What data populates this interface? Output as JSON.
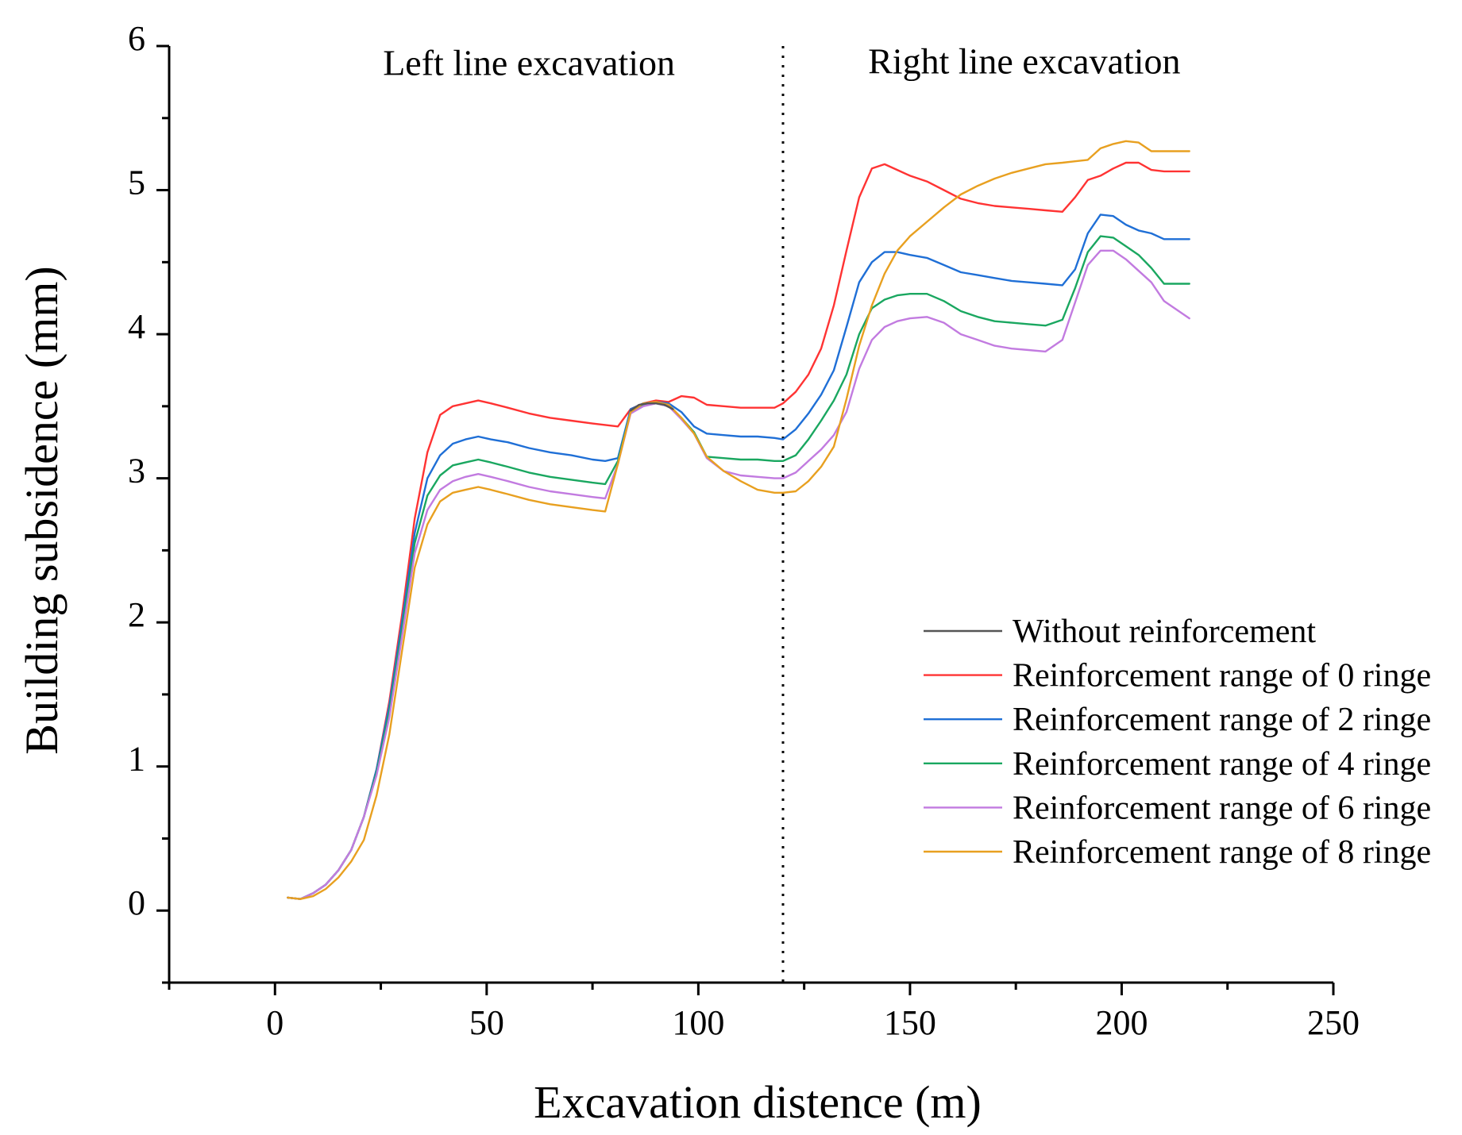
{
  "chart_data": {
    "type": "line",
    "title": "",
    "xlabel": "Excavation distence (m)",
    "ylabel": "Building subsidence (mm)",
    "xlim": [
      -25,
      250
    ],
    "ylim": [
      -0.5,
      6
    ],
    "xticks": [
      0,
      50,
      100,
      150,
      200,
      250
    ],
    "yticks": [
      0,
      1,
      2,
      3,
      4,
      5,
      6
    ],
    "grid": false,
    "legend_position": "lower-right",
    "divider": {
      "x": 120,
      "style": "dotted"
    },
    "annotations": [
      {
        "text": "Left line excavation",
        "x": 60,
        "y": 5.8
      },
      {
        "text": "Right line excavation",
        "x": 177,
        "y": 5.81
      }
    ],
    "series": [
      {
        "name": "Without reinforcement",
        "color": "#555555",
        "x": [
          84,
          86,
          88,
          90,
          92,
          94
        ],
        "y": [
          3.47,
          3.51,
          3.52,
          3.52,
          3.51,
          3.48
        ]
      },
      {
        "name": "Reinforcement range of 0 ringe",
        "color": "#ff3333",
        "x": [
          3,
          6,
          9,
          12,
          15,
          18,
          21,
          24,
          27,
          30,
          33,
          36,
          39,
          42,
          45,
          48,
          51,
          55,
          60,
          65,
          70,
          75,
          78,
          81,
          84,
          87,
          90,
          93,
          96,
          99,
          102,
          106,
          110,
          114,
          118,
          120,
          123,
          126,
          129,
          132,
          135,
          138,
          141,
          144,
          147,
          150,
          154,
          158,
          162,
          166,
          170,
          174,
          178,
          182,
          186,
          189,
          192,
          195,
          198,
          201,
          204,
          207,
          210,
          213,
          216
        ],
        "y": [
          0.09,
          0.08,
          0.12,
          0.18,
          0.28,
          0.42,
          0.65,
          0.98,
          1.45,
          2.05,
          2.72,
          3.18,
          3.44,
          3.5,
          3.52,
          3.54,
          3.52,
          3.49,
          3.45,
          3.42,
          3.4,
          3.38,
          3.37,
          3.36,
          3.48,
          3.52,
          3.54,
          3.53,
          3.57,
          3.56,
          3.51,
          3.5,
          3.49,
          3.49,
          3.49,
          3.52,
          3.6,
          3.72,
          3.9,
          4.2,
          4.58,
          4.95,
          5.15,
          5.18,
          5.14,
          5.1,
          5.06,
          5.0,
          4.94,
          4.91,
          4.89,
          4.88,
          4.87,
          4.86,
          4.85,
          4.95,
          5.07,
          5.1,
          5.15,
          5.19,
          5.19,
          5.14,
          5.13,
          5.13,
          5.13
        ]
      },
      {
        "name": "Reinforcement range of 2 ringe",
        "color": "#1f6fd6",
        "x": [
          3,
          6,
          9,
          12,
          15,
          18,
          21,
          24,
          27,
          30,
          33,
          36,
          39,
          42,
          45,
          48,
          51,
          55,
          60,
          65,
          70,
          75,
          78,
          81,
          84,
          87,
          90,
          93,
          96,
          99,
          102,
          106,
          110,
          114,
          118,
          120,
          123,
          126,
          129,
          132,
          135,
          138,
          141,
          144,
          147,
          150,
          154,
          158,
          162,
          166,
          170,
          174,
          178,
          182,
          186,
          189,
          192,
          195,
          198,
          201,
          204,
          207,
          210,
          213,
          216
        ],
        "y": [
          0.09,
          0.08,
          0.12,
          0.18,
          0.28,
          0.42,
          0.65,
          0.98,
          1.42,
          2.0,
          2.62,
          3.0,
          3.16,
          3.24,
          3.27,
          3.29,
          3.27,
          3.25,
          3.21,
          3.18,
          3.16,
          3.13,
          3.12,
          3.14,
          3.48,
          3.52,
          3.53,
          3.52,
          3.46,
          3.36,
          3.31,
          3.3,
          3.29,
          3.29,
          3.28,
          3.27,
          3.34,
          3.45,
          3.58,
          3.75,
          4.05,
          4.36,
          4.5,
          4.57,
          4.57,
          4.55,
          4.53,
          4.48,
          4.43,
          4.41,
          4.39,
          4.37,
          4.36,
          4.35,
          4.34,
          4.45,
          4.7,
          4.83,
          4.82,
          4.76,
          4.72,
          4.7,
          4.66,
          4.66,
          4.66
        ]
      },
      {
        "name": "Reinforcement range of 4 ringe",
        "color": "#1aa760",
        "x": [
          3,
          6,
          9,
          12,
          15,
          18,
          21,
          24,
          27,
          30,
          33,
          36,
          39,
          42,
          45,
          48,
          51,
          55,
          60,
          65,
          70,
          75,
          78,
          81,
          84,
          87,
          90,
          93,
          96,
          99,
          102,
          106,
          110,
          114,
          118,
          120,
          123,
          126,
          129,
          132,
          135,
          138,
          141,
          144,
          147,
          150,
          154,
          158,
          162,
          166,
          170,
          174,
          178,
          182,
          186,
          189,
          192,
          195,
          198,
          201,
          204,
          207,
          210,
          213,
          216
        ],
        "y": [
          0.09,
          0.08,
          0.12,
          0.18,
          0.28,
          0.42,
          0.65,
          0.96,
          1.38,
          1.95,
          2.55,
          2.88,
          3.02,
          3.09,
          3.11,
          3.13,
          3.11,
          3.08,
          3.04,
          3.01,
          2.99,
          2.97,
          2.96,
          3.12,
          3.46,
          3.51,
          3.52,
          3.5,
          3.42,
          3.32,
          3.15,
          3.14,
          3.13,
          3.13,
          3.12,
          3.12,
          3.16,
          3.27,
          3.4,
          3.54,
          3.72,
          4.0,
          4.18,
          4.24,
          4.27,
          4.28,
          4.28,
          4.23,
          4.16,
          4.12,
          4.09,
          4.08,
          4.07,
          4.06,
          4.1,
          4.32,
          4.57,
          4.68,
          4.67,
          4.61,
          4.55,
          4.46,
          4.35,
          4.35,
          4.35
        ]
      },
      {
        "name": "Reinforcement range of 6 ringe",
        "color": "#c27be0",
        "x": [
          3,
          6,
          9,
          12,
          15,
          18,
          21,
          24,
          27,
          30,
          33,
          36,
          39,
          42,
          45,
          48,
          51,
          55,
          60,
          65,
          70,
          75,
          78,
          81,
          84,
          87,
          90,
          93,
          96,
          99,
          102,
          106,
          110,
          114,
          118,
          120,
          123,
          126,
          129,
          132,
          135,
          138,
          141,
          144,
          147,
          150,
          154,
          158,
          162,
          166,
          170,
          174,
          178,
          182,
          186,
          189,
          192,
          195,
          198,
          201,
          204,
          207,
          210,
          213,
          216
        ],
        "y": [
          0.09,
          0.08,
          0.12,
          0.18,
          0.28,
          0.42,
          0.65,
          0.94,
          1.34,
          1.9,
          2.48,
          2.78,
          2.92,
          2.98,
          3.01,
          3.03,
          3.01,
          2.98,
          2.94,
          2.91,
          2.89,
          2.87,
          2.86,
          3.1,
          3.45,
          3.5,
          3.52,
          3.5,
          3.41,
          3.31,
          3.14,
          3.05,
          3.02,
          3.01,
          3.0,
          3.0,
          3.04,
          3.12,
          3.2,
          3.3,
          3.46,
          3.76,
          3.96,
          4.05,
          4.09,
          4.11,
          4.12,
          4.08,
          4.0,
          3.96,
          3.92,
          3.9,
          3.89,
          3.88,
          3.96,
          4.22,
          4.48,
          4.58,
          4.58,
          4.52,
          4.44,
          4.36,
          4.23,
          4.17,
          4.11
        ]
      },
      {
        "name": "Reinforcement range of 8 ringe",
        "color": "#e8a020",
        "x": [
          3,
          6,
          9,
          12,
          15,
          18,
          21,
          24,
          27,
          30,
          33,
          36,
          39,
          42,
          45,
          48,
          51,
          55,
          60,
          65,
          70,
          75,
          78,
          81,
          84,
          87,
          90,
          93,
          96,
          99,
          102,
          106,
          110,
          114,
          118,
          120,
          123,
          126,
          129,
          132,
          135,
          138,
          141,
          144,
          147,
          150,
          154,
          158,
          162,
          166,
          170,
          174,
          178,
          182,
          186,
          189,
          192,
          195,
          198,
          201,
          204,
          207,
          210,
          213,
          216
        ],
        "y": [
          0.09,
          0.08,
          0.1,
          0.15,
          0.23,
          0.34,
          0.49,
          0.8,
          1.22,
          1.8,
          2.38,
          2.68,
          2.84,
          2.9,
          2.92,
          2.94,
          2.92,
          2.89,
          2.85,
          2.82,
          2.8,
          2.78,
          2.77,
          3.1,
          3.46,
          3.52,
          3.53,
          3.51,
          3.42,
          3.31,
          3.15,
          3.05,
          2.98,
          2.92,
          2.9,
          2.9,
          2.91,
          2.98,
          3.08,
          3.22,
          3.55,
          3.92,
          4.2,
          4.42,
          4.58,
          4.68,
          4.78,
          4.88,
          4.97,
          5.03,
          5.08,
          5.12,
          5.15,
          5.18,
          5.19,
          5.2,
          5.21,
          5.29,
          5.32,
          5.34,
          5.33,
          5.27,
          5.27,
          5.27,
          5.27
        ]
      }
    ]
  }
}
